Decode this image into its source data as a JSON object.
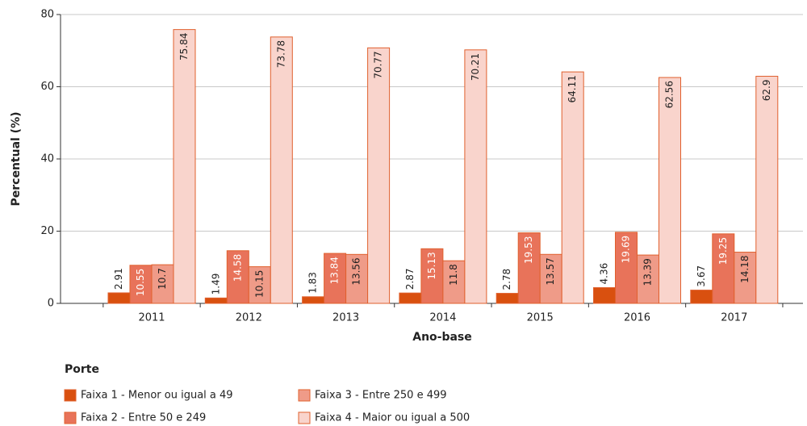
{
  "chart_data": {
    "type": "bar",
    "x_label": "Ano-base",
    "y_label": "Percentual (%)",
    "legend_title": "Porte",
    "categories": [
      "2011",
      "2012",
      "2013",
      "2014",
      "2015",
      "2016",
      "2017"
    ],
    "series": [
      {
        "name": "Faixa 1 - Menor ou igual a 49",
        "color": "#d9500f",
        "values": [
          2.91,
          1.49,
          1.83,
          2.87,
          2.78,
          4.36,
          3.67
        ]
      },
      {
        "name": "Faixa 2 - Entre 50 e 249",
        "color": "#e8735a",
        "values": [
          10.55,
          14.58,
          13.84,
          15.13,
          19.53,
          19.69,
          19.25
        ]
      },
      {
        "name": "Faixa 3 - Entre 250 e 499",
        "color": "#ef9b88",
        "values": [
          10.7,
          10.15,
          13.56,
          11.8,
          13.57,
          13.39,
          14.18
        ]
      },
      {
        "name": "Faixa 4 - Maior ou igual a 500",
        "color": "#f9d4cc",
        "values": [
          75.84,
          73.78,
          70.77,
          70.21,
          64.11,
          62.56,
          62.9
        ]
      }
    ],
    "ylim": [
      0,
      80
    ],
    "yticks": [
      0,
      20,
      40,
      60,
      80
    ],
    "grid": true
  }
}
